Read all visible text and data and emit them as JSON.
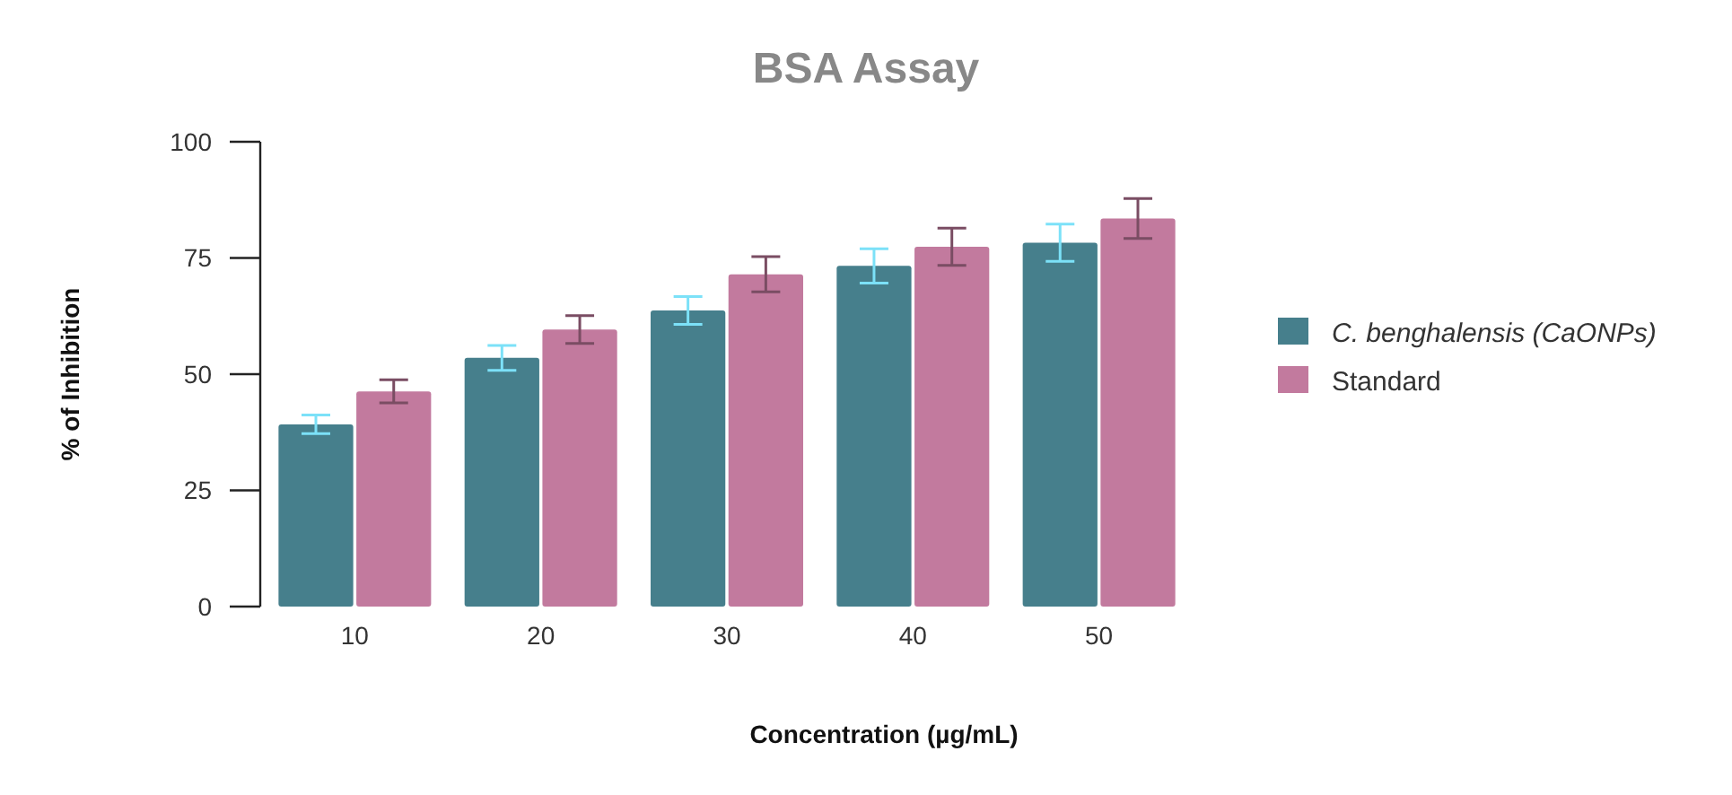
{
  "chart_data": {
    "type": "bar",
    "title": "BSA Assay",
    "xlabel": "Concentration (µg/mL)",
    "ylabel": "% of Inhibition",
    "categories": [
      "10",
      "20",
      "30",
      "40",
      "50"
    ],
    "series": [
      {
        "name": "C. benghalensis (CaONPs)",
        "color": "#467f8c",
        "values": [
          39.2,
          53.5,
          63.7,
          73.3,
          78.3
        ],
        "errors": [
          2,
          2.7,
          3,
          3.7,
          4
        ]
      },
      {
        "name": "Standard",
        "color": "#c27a9e",
        "values": [
          46.3,
          59.6,
          71.5,
          77.4,
          83.5
        ],
        "errors": [
          2.5,
          3,
          3.8,
          4,
          4.3
        ]
      }
    ],
    "ylim": [
      0,
      100
    ],
    "yticks": [
      0,
      25,
      50,
      75,
      100
    ],
    "grid": false,
    "legend": "right"
  }
}
